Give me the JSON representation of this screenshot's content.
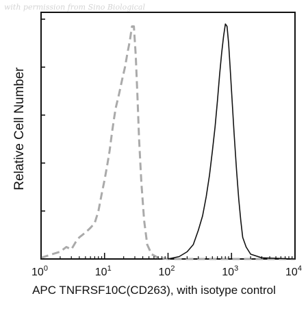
{
  "watermark": "with permission from Sino Biological",
  "chart_data": {
    "type": "line",
    "title": "",
    "xlabel": "APC TNFRSF10C(CD263), with isotype control",
    "ylabel": "Relative Cell Number",
    "xscale": "log",
    "xlim": [
      1,
      10000
    ],
    "ylim": [
      0,
      100
    ],
    "xticks": [
      {
        "base": "10",
        "exp": "0",
        "value": 1
      },
      {
        "base": "10",
        "exp": "1",
        "value": 10
      },
      {
        "base": "10",
        "exp": "2",
        "value": 100
      },
      {
        "base": "10",
        "exp": "3",
        "value": 1000
      },
      {
        "base": "10",
        "exp": "4",
        "value": 10000
      }
    ],
    "grid": false,
    "legend": "none",
    "series": [
      {
        "style": "dashed",
        "color": "#aaaaaa",
        "points": [
          [
            1.0,
            0.5
          ],
          [
            1.5,
            2
          ],
          [
            2.0,
            3
          ],
          [
            2.5,
            5
          ],
          [
            3.0,
            4
          ],
          [
            3.5,
            7
          ],
          [
            4.0,
            9
          ],
          [
            5.0,
            11
          ],
          [
            6.0,
            13
          ],
          [
            7.0,
            15
          ],
          [
            8.0,
            20
          ],
          [
            9.0,
            27
          ],
          [
            10.0,
            33
          ],
          [
            11.0,
            39
          ],
          [
            12.0,
            45
          ],
          [
            13.0,
            52
          ],
          [
            14.0,
            58
          ],
          [
            15.0,
            63
          ],
          [
            17.0,
            69
          ],
          [
            19.0,
            75
          ],
          [
            21.0,
            80
          ],
          [
            23.0,
            86
          ],
          [
            25.0,
            91
          ],
          [
            27.0,
            97
          ],
          [
            29.0,
            97
          ],
          [
            31.0,
            85
          ],
          [
            33.0,
            68
          ],
          [
            35.0,
            50
          ],
          [
            38.0,
            32
          ],
          [
            42.0,
            16
          ],
          [
            47.0,
            6
          ],
          [
            55.0,
            2
          ],
          [
            70.0,
            0.5
          ],
          [
            100.0,
            0
          ],
          [
            10000.0,
            0
          ]
        ]
      },
      {
        "style": "solid",
        "color": "#111111",
        "points": [
          [
            100.0,
            0
          ],
          [
            150.0,
            1
          ],
          [
            200.0,
            3
          ],
          [
            250.0,
            6
          ],
          [
            300.0,
            12
          ],
          [
            350.0,
            18
          ],
          [
            400.0,
            26
          ],
          [
            450.0,
            35
          ],
          [
            500.0,
            45
          ],
          [
            550.0,
            55
          ],
          [
            600.0,
            66
          ],
          [
            650.0,
            77
          ],
          [
            700.0,
            86
          ],
          [
            750.0,
            93
          ],
          [
            800.0,
            98
          ],
          [
            850.0,
            97
          ],
          [
            900.0,
            90
          ],
          [
            950.0,
            80
          ],
          [
            1000.0,
            70
          ],
          [
            1100.0,
            52
          ],
          [
            1200.0,
            37
          ],
          [
            1300.0,
            25
          ],
          [
            1400.0,
            16
          ],
          [
            1500.0,
            9
          ],
          [
            1700.0,
            5
          ],
          [
            2000.0,
            2
          ],
          [
            3000.0,
            0.5
          ],
          [
            10000.0,
            0
          ]
        ]
      }
    ]
  }
}
